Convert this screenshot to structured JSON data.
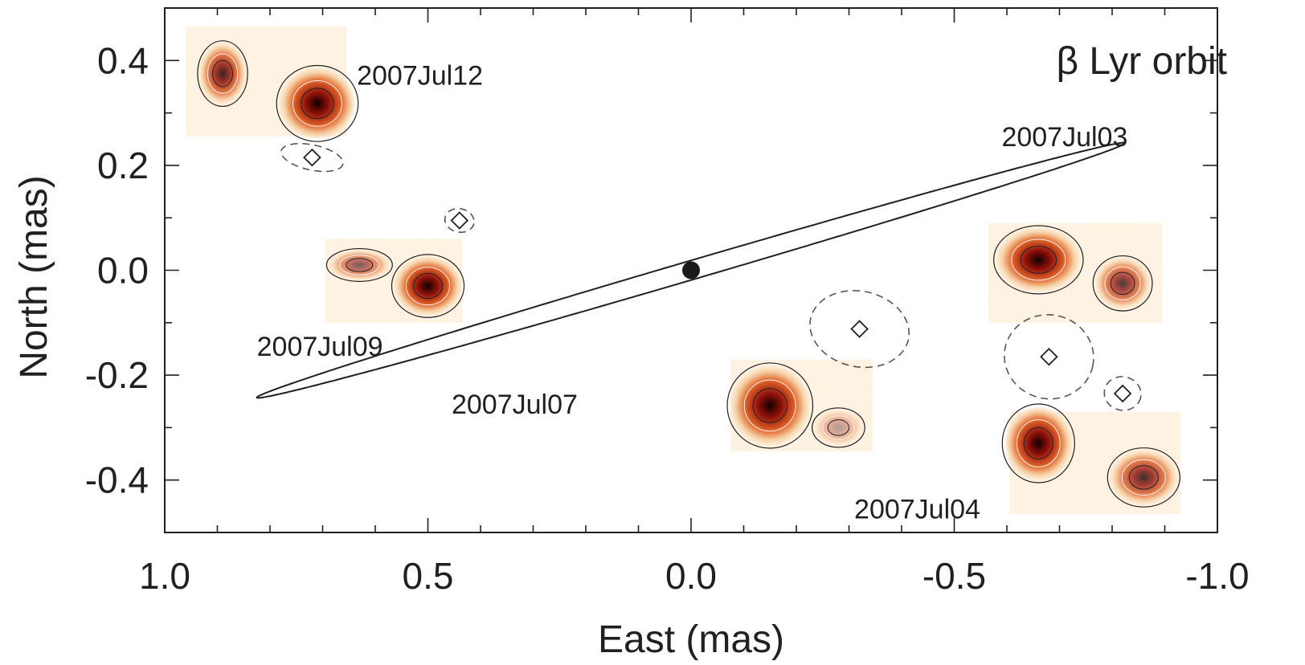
{
  "chart_data": {
    "type": "scatter",
    "title": "β Lyr orbit",
    "xlabel": "East (mas)",
    "ylabel": "North (mas)",
    "xlim": [
      1.0,
      -1.0
    ],
    "ylim": [
      -0.5,
      0.5
    ],
    "x_reversed": true,
    "grid": false,
    "x_ticks": [
      1.0,
      0.5,
      0.0,
      -0.5,
      -1.0
    ],
    "x_tick_labels": [
      "1.0",
      "0.5",
      "0.0",
      "-0.5",
      "-1.0"
    ],
    "y_ticks": [
      0.4,
      0.2,
      0.0,
      -0.2,
      -0.4
    ],
    "y_tick_labels": [
      "0.4",
      "0.2",
      "0.0",
      "-0.2",
      "-0.4"
    ],
    "primary": {
      "x": 0.0,
      "y": 0.0
    },
    "orbit": {
      "center_x": 0.0,
      "center_y": 0.0,
      "semi_major": 0.86,
      "semi_minor": 0.018,
      "east_of_north_pa_deg": -73.6
    },
    "measurements": [
      {
        "x": 0.72,
        "y": 0.215,
        "err_a": 0.06,
        "err_b": 0.015
      },
      {
        "x": 0.44,
        "y": 0.095,
        "err_a": 0.028,
        "err_b": 0.014
      },
      {
        "x": -0.32,
        "y": -0.112,
        "err_a": 0.095,
        "err_b": 0.045
      },
      {
        "x": -0.68,
        "y": -0.165,
        "err_a": 0.085,
        "err_b": 0.05
      },
      {
        "x": -0.82,
        "y": -0.235,
        "err_a": 0.035,
        "err_b": 0.02
      }
    ],
    "images": [
      {
        "label": "2007Jul12",
        "label_x": 0.635,
        "label_y": 0.372,
        "x_left": 0.96,
        "x_right": 0.655,
        "y_top": 0.465,
        "y_bottom": 0.255,
        "blobs": [
          {
            "x": 0.89,
            "y": 0.375,
            "rx": 0.038,
            "ry": 0.05,
            "strength": 0.85
          },
          {
            "x": 0.71,
            "y": 0.318,
            "rx": 0.062,
            "ry": 0.058,
            "strength": 1.0
          }
        ]
      },
      {
        "label": "2007Jul09",
        "label_x": 0.825,
        "label_y": -0.145,
        "x_left": 0.695,
        "x_right": 0.435,
        "y_top": 0.06,
        "y_bottom": -0.1,
        "blobs": [
          {
            "x": 0.63,
            "y": 0.01,
            "rx": 0.05,
            "ry": 0.025,
            "strength": 0.6
          },
          {
            "x": 0.5,
            "y": -0.03,
            "rx": 0.055,
            "ry": 0.048,
            "strength": 1.0
          }
        ]
      },
      {
        "label": "2007Jul07",
        "label_x": 0.455,
        "label_y": -0.255,
        "x_left": -0.075,
        "x_right": -0.345,
        "y_top": -0.17,
        "y_bottom": -0.345,
        "blobs": [
          {
            "x": -0.15,
            "y": -0.258,
            "rx": 0.065,
            "ry": 0.065,
            "strength": 1.0
          },
          {
            "x": -0.28,
            "y": -0.3,
            "rx": 0.04,
            "ry": 0.03,
            "strength": 0.35
          }
        ]
      },
      {
        "label": "2007Jul03",
        "label_x": -0.59,
        "label_y": 0.255,
        "x_left": -0.565,
        "x_right": -0.895,
        "y_top": 0.09,
        "y_bottom": -0.1,
        "blobs": [
          {
            "x": -0.66,
            "y": 0.02,
            "rx": 0.068,
            "ry": 0.052,
            "strength": 1.0
          },
          {
            "x": -0.82,
            "y": -0.025,
            "rx": 0.045,
            "ry": 0.042,
            "strength": 0.75
          }
        ]
      },
      {
        "label": "2007Jul04",
        "label_x": -0.31,
        "label_y": -0.455,
        "x_left": -0.605,
        "x_right": -0.93,
        "y_top": -0.27,
        "y_bottom": -0.465,
        "blobs": [
          {
            "x": -0.66,
            "y": -0.33,
            "rx": 0.055,
            "ry": 0.06,
            "strength": 1.0
          },
          {
            "x": -0.86,
            "y": -0.395,
            "rx": 0.055,
            "ry": 0.045,
            "strength": 0.8
          }
        ]
      }
    ]
  },
  "colors": {
    "axis": "#231f20",
    "orbit": "#231f20",
    "error_ellipse": "#555555",
    "primary_dot": "#1a1a1a",
    "heat_low": "#f6d3a8",
    "heat_mid": "#e2662a",
    "heat_high": "#8b0f0a",
    "heat_core": "#100000"
  }
}
